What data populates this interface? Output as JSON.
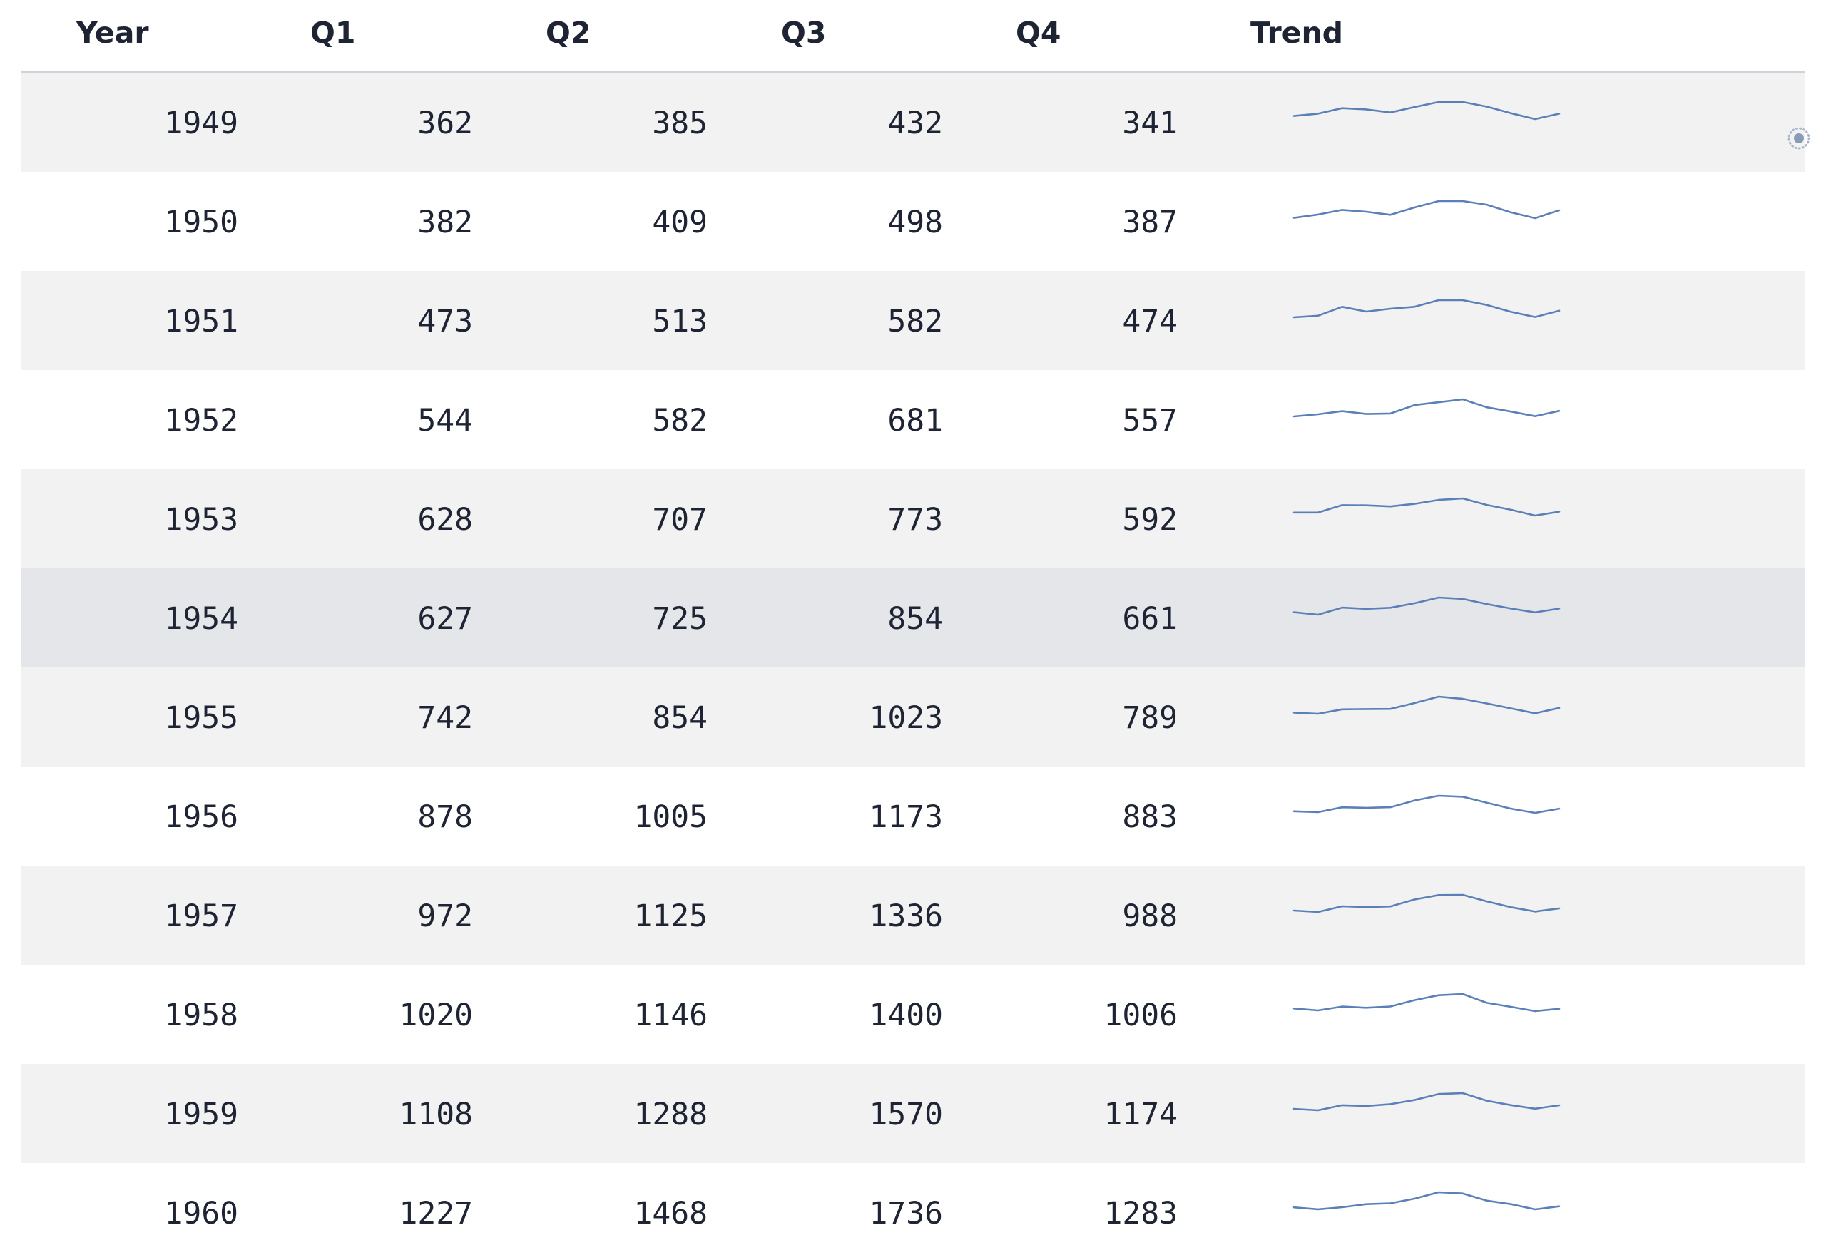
{
  "table": {
    "columns": [
      "Year",
      "Q1",
      "Q2",
      "Q3",
      "Q4",
      "Trend"
    ],
    "selected_year": "1954",
    "trend_color": "#5b80b8",
    "rows": [
      {
        "year": "1949",
        "q1": "362",
        "q2": "385",
        "q3": "432",
        "q4": "341",
        "monthly": [
          112,
          118,
          132,
          129,
          121,
          135,
          148,
          148,
          136,
          119,
          104,
          118
        ]
      },
      {
        "year": "1950",
        "q1": "382",
        "q2": "409",
        "q3": "498",
        "q4": "387",
        "monthly": [
          115,
          126,
          141,
          135,
          125,
          149,
          170,
          170,
          158,
          133,
          114,
          140
        ]
      },
      {
        "year": "1951",
        "q1": "473",
        "q2": "513",
        "q3": "582",
        "q4": "474",
        "monthly": [
          145,
          150,
          178,
          163,
          172,
          178,
          199,
          199,
          184,
          162,
          146,
          166
        ]
      },
      {
        "year": "1952",
        "q1": "544",
        "q2": "582",
        "q3": "681",
        "q4": "557",
        "monthly": [
          171,
          180,
          193,
          181,
          183,
          218,
          230,
          242,
          209,
          191,
          172,
          194
        ]
      },
      {
        "year": "1953",
        "q1": "628",
        "q2": "707",
        "q3": "773",
        "q4": "592",
        "monthly": [
          196,
          196,
          236,
          235,
          229,
          243,
          264,
          272,
          237,
          211,
          180,
          201
        ]
      },
      {
        "year": "1954",
        "q1": "627",
        "q2": "725",
        "q3": "854",
        "q4": "661",
        "monthly": [
          204,
          188,
          235,
          227,
          234,
          264,
          302,
          293,
          259,
          229,
          203,
          229
        ]
      },
      {
        "year": "1955",
        "q1": "742",
        "q2": "854",
        "q3": "1023",
        "q4": "789",
        "monthly": [
          242,
          233,
          267,
          269,
          270,
          315,
          364,
          347,
          312,
          274,
          237,
          278
        ]
      },
      {
        "year": "1956",
        "q1": "878",
        "q2": "1005",
        "q3": "1173",
        "q4": "883",
        "monthly": [
          284,
          277,
          317,
          313,
          318,
          374,
          413,
          405,
          355,
          306,
          271,
          306
        ]
      },
      {
        "year": "1957",
        "q1": "972",
        "q2": "1125",
        "q3": "1336",
        "q4": "988",
        "monthly": [
          315,
          301,
          356,
          348,
          355,
          422,
          465,
          467,
          404,
          347,
          305,
          336
        ]
      },
      {
        "year": "1958",
        "q1": "1020",
        "q2": "1146",
        "q3": "1400",
        "q4": "1006",
        "monthly": [
          340,
          318,
          362,
          348,
          363,
          435,
          491,
          505,
          404,
          359,
          310,
          337
        ]
      },
      {
        "year": "1959",
        "q1": "1108",
        "q2": "1288",
        "q3": "1570",
        "q4": "1174",
        "monthly": [
          360,
          342,
          406,
          396,
          420,
          472,
          548,
          559,
          463,
          407,
          362,
          405
        ]
      },
      {
        "year": "1960",
        "q1": "1227",
        "q2": "1468",
        "q3": "1736",
        "q4": "1283",
        "monthly": [
          417,
          391,
          419,
          461,
          472,
          535,
          622,
          606,
          508,
          461,
          390,
          432
        ]
      }
    ]
  },
  "icons": {
    "settings": "sun-gear-icon"
  }
}
